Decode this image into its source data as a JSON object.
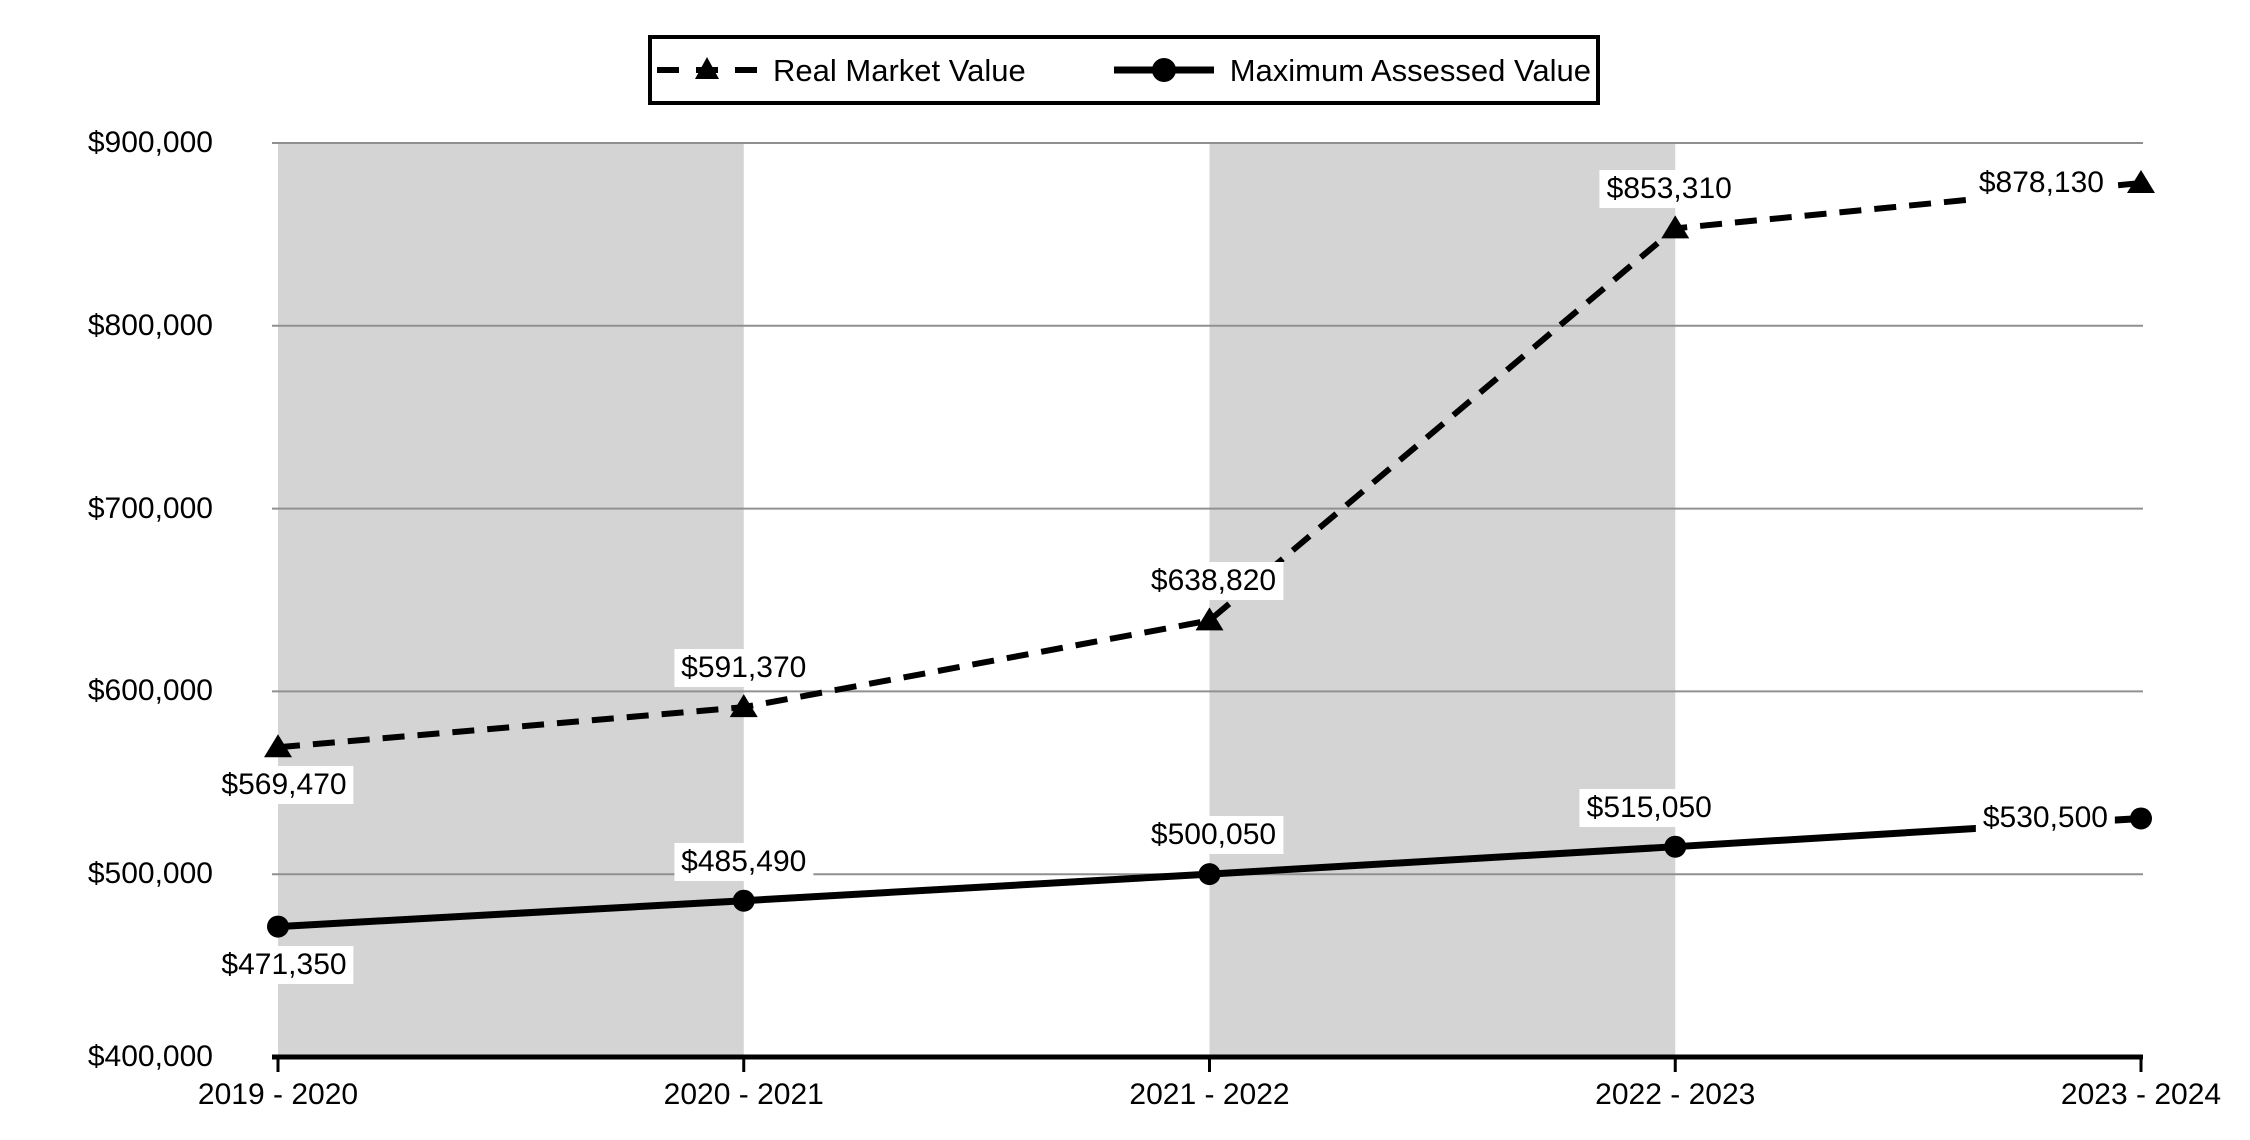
{
  "legend": {
    "items": [
      {
        "label": "Real Market Value",
        "swatch": "dashed-line-triangle-marker"
      },
      {
        "label": "Maximum Assessed Value",
        "swatch": "solid-line-circle-marker"
      }
    ]
  },
  "chart_data": {
    "type": "line",
    "categories": [
      "2019 - 2020",
      "2020 - 2021",
      "2021 - 2022",
      "2022 - 2023",
      "2023 - 2024"
    ],
    "series": [
      {
        "name": "Real Market Value",
        "line_style": "dashed",
        "marker": "triangle",
        "color": "#000000",
        "values": [
          569470,
          591370,
          638820,
          853310,
          878130
        ],
        "point_labels": [
          "$569,470",
          "$591,370",
          "$638,820",
          "$853,310",
          "$878,130"
        ]
      },
      {
        "name": "Maximum Assessed Value",
        "line_style": "solid",
        "marker": "circle",
        "color": "#000000",
        "values": [
          471350,
          485490,
          500050,
          515050,
          530500
        ],
        "point_labels": [
          "$471,350",
          "$485,490",
          "$500,050",
          "$515,050",
          "$530,500"
        ]
      }
    ],
    "y_axis": {
      "min": 400000,
      "max": 900000,
      "tick_interval": 100000,
      "tick_labels": [
        "$400,000",
        "$500,000",
        "$600,000",
        "$700,000",
        "$800,000",
        "$900,000"
      ]
    },
    "x_axis": {
      "tick_labels": [
        "2019 - 2020",
        "2020 - 2021",
        "2021 - 2022",
        "2022 - 2023",
        "2023 - 2024"
      ]
    },
    "grid": "horizontal",
    "legend_position": "top",
    "plot_bands": {
      "between_category_index_pairs": [
        [
          0,
          1
        ],
        [
          2,
          3
        ]
      ]
    },
    "colors": {
      "series": "#000000",
      "gridline": "#909090",
      "axis": "#000000",
      "band": "#d4d4d4",
      "text": "#000000",
      "label_background": "#ffffff"
    }
  }
}
